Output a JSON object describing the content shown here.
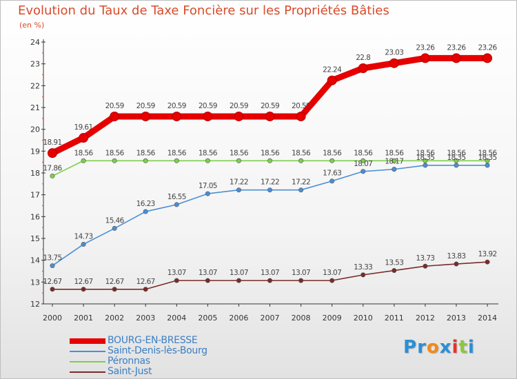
{
  "title": "Evolution du Taux de Taxe Foncière sur les Propriétés Bâties",
  "subtitle": "(en %)",
  "brand": {
    "letters": [
      "P",
      "r",
      "o",
      "x",
      "i",
      "t",
      "i"
    ],
    "colors": [
      "#2a8fd6",
      "#2a8fd6",
      "#f08a1c",
      "#2a8fd6",
      "#e8312b",
      "#8cc63f",
      "#2a8fd6"
    ]
  },
  "chart_data": {
    "type": "line",
    "x": [
      "2000",
      "2001",
      "2002",
      "2003",
      "2004",
      "2005",
      "2006",
      "2007",
      "2008",
      "2009",
      "2010",
      "2011",
      "2012",
      "2013",
      "2014"
    ],
    "ylim": [
      12,
      24
    ],
    "yticks": [
      "12",
      "13",
      "14",
      "15",
      "16",
      "17",
      "18",
      "19",
      "20",
      "21",
      "22",
      "23",
      "24"
    ],
    "xlabel": "",
    "ylabel": "",
    "grid": false,
    "legend_position": "bottom-left",
    "series": [
      {
        "name": "BOURG-EN-BRESSE",
        "color": "#e60000",
        "values": [
          18.91,
          19.61,
          20.59,
          20.59,
          20.59,
          20.59,
          20.59,
          20.59,
          20.59,
          22.24,
          22.8,
          23.03,
          23.26,
          23.26,
          23.26
        ],
        "labels": [
          "18.91",
          "19.61",
          "20.59",
          "20.59",
          "20.59",
          "20.59",
          "20.59",
          "20.59",
          "20.59",
          "22.24",
          "22.8",
          "23.03",
          "23.26",
          "23.26",
          "23.26"
        ]
      },
      {
        "name": "Saint-Denis-lès-Bourg",
        "color": "#4a8fd4",
        "values": [
          13.75,
          14.73,
          15.46,
          16.23,
          16.55,
          17.05,
          17.22,
          17.22,
          17.22,
          17.63,
          18.07,
          18.17,
          18.35,
          18.35,
          18.35
        ],
        "labels": [
          "13.75",
          "14.73",
          "15.46",
          "16.23",
          "16.55",
          "17.05",
          "17.22",
          "17.22",
          "17.22",
          "17.63",
          "18.07",
          "18.17",
          "18.35",
          "18.35",
          "18.35"
        ]
      },
      {
        "name": "Péronnas",
        "color": "#7dcf4a",
        "values": [
          17.86,
          18.56,
          18.56,
          18.56,
          18.56,
          18.56,
          18.56,
          18.56,
          18.56,
          18.56,
          18.56,
          18.56,
          18.56,
          18.56,
          18.56
        ],
        "labels": [
          "17.86",
          "18.56",
          "18.56",
          "18.56",
          "18.56",
          "18.56",
          "18.56",
          "18.56",
          "18.56",
          "18.56",
          "18.56",
          "18.56",
          "18.56",
          "18.56",
          "18.56"
        ]
      },
      {
        "name": "Saint-Just",
        "color": "#7a2a2a",
        "values": [
          12.67,
          12.67,
          12.67,
          12.67,
          13.07,
          13.07,
          13.07,
          13.07,
          13.07,
          13.07,
          13.33,
          13.53,
          13.73,
          13.83,
          13.92
        ],
        "labels": [
          "12.67",
          "12.67",
          "12.67",
          "12.67",
          "13.07",
          "13.07",
          "13.07",
          "13.07",
          "13.07",
          "13.07",
          "13.33",
          "13.53",
          "13.73",
          "13.83",
          "13.92"
        ]
      }
    ]
  }
}
